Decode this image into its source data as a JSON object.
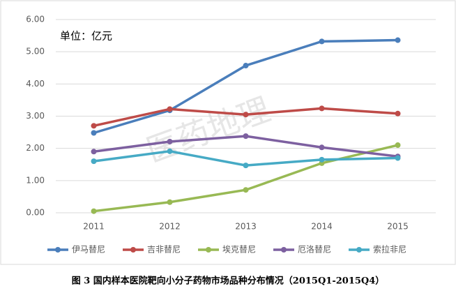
{
  "chart_data": {
    "type": "line",
    "annotation": "单位：亿元",
    "watermark": "医药地理",
    "caption": "图 3 国内样本医院靶向小分子药物市场品种分布情况（2015Q1-2015Q4）",
    "categories": [
      "2011",
      "2012",
      "2013",
      "2014",
      "2015"
    ],
    "series": [
      {
        "name": "伊马替尼",
        "color": "#4a7ebb",
        "values": [
          2.48,
          3.18,
          4.57,
          5.32,
          5.36
        ]
      },
      {
        "name": "吉非替尼",
        "color": "#be4b48",
        "values": [
          2.7,
          3.22,
          3.05,
          3.24,
          3.08
        ]
      },
      {
        "name": "埃克替尼",
        "color": "#98b954",
        "values": [
          0.05,
          0.33,
          0.71,
          1.54,
          2.1
        ]
      },
      {
        "name": "厄洛替尼",
        "color": "#7d60a0",
        "values": [
          1.9,
          2.21,
          2.38,
          2.03,
          1.75
        ]
      },
      {
        "name": "索拉非尼",
        "color": "#46aac5",
        "values": [
          1.6,
          1.91,
          1.47,
          1.65,
          1.7
        ]
      }
    ],
    "ylim": [
      0,
      6
    ],
    "yticks": [
      {
        "value": 0,
        "label": "0.00"
      },
      {
        "value": 1,
        "label": "1.00"
      },
      {
        "value": 2,
        "label": "2.00"
      },
      {
        "value": 3,
        "label": "3.00"
      },
      {
        "value": 4,
        "label": "4.00"
      },
      {
        "value": 5,
        "label": "5.00"
      },
      {
        "value": 6,
        "label": "6.00"
      }
    ],
    "grid": true,
    "legend": "bottom"
  }
}
